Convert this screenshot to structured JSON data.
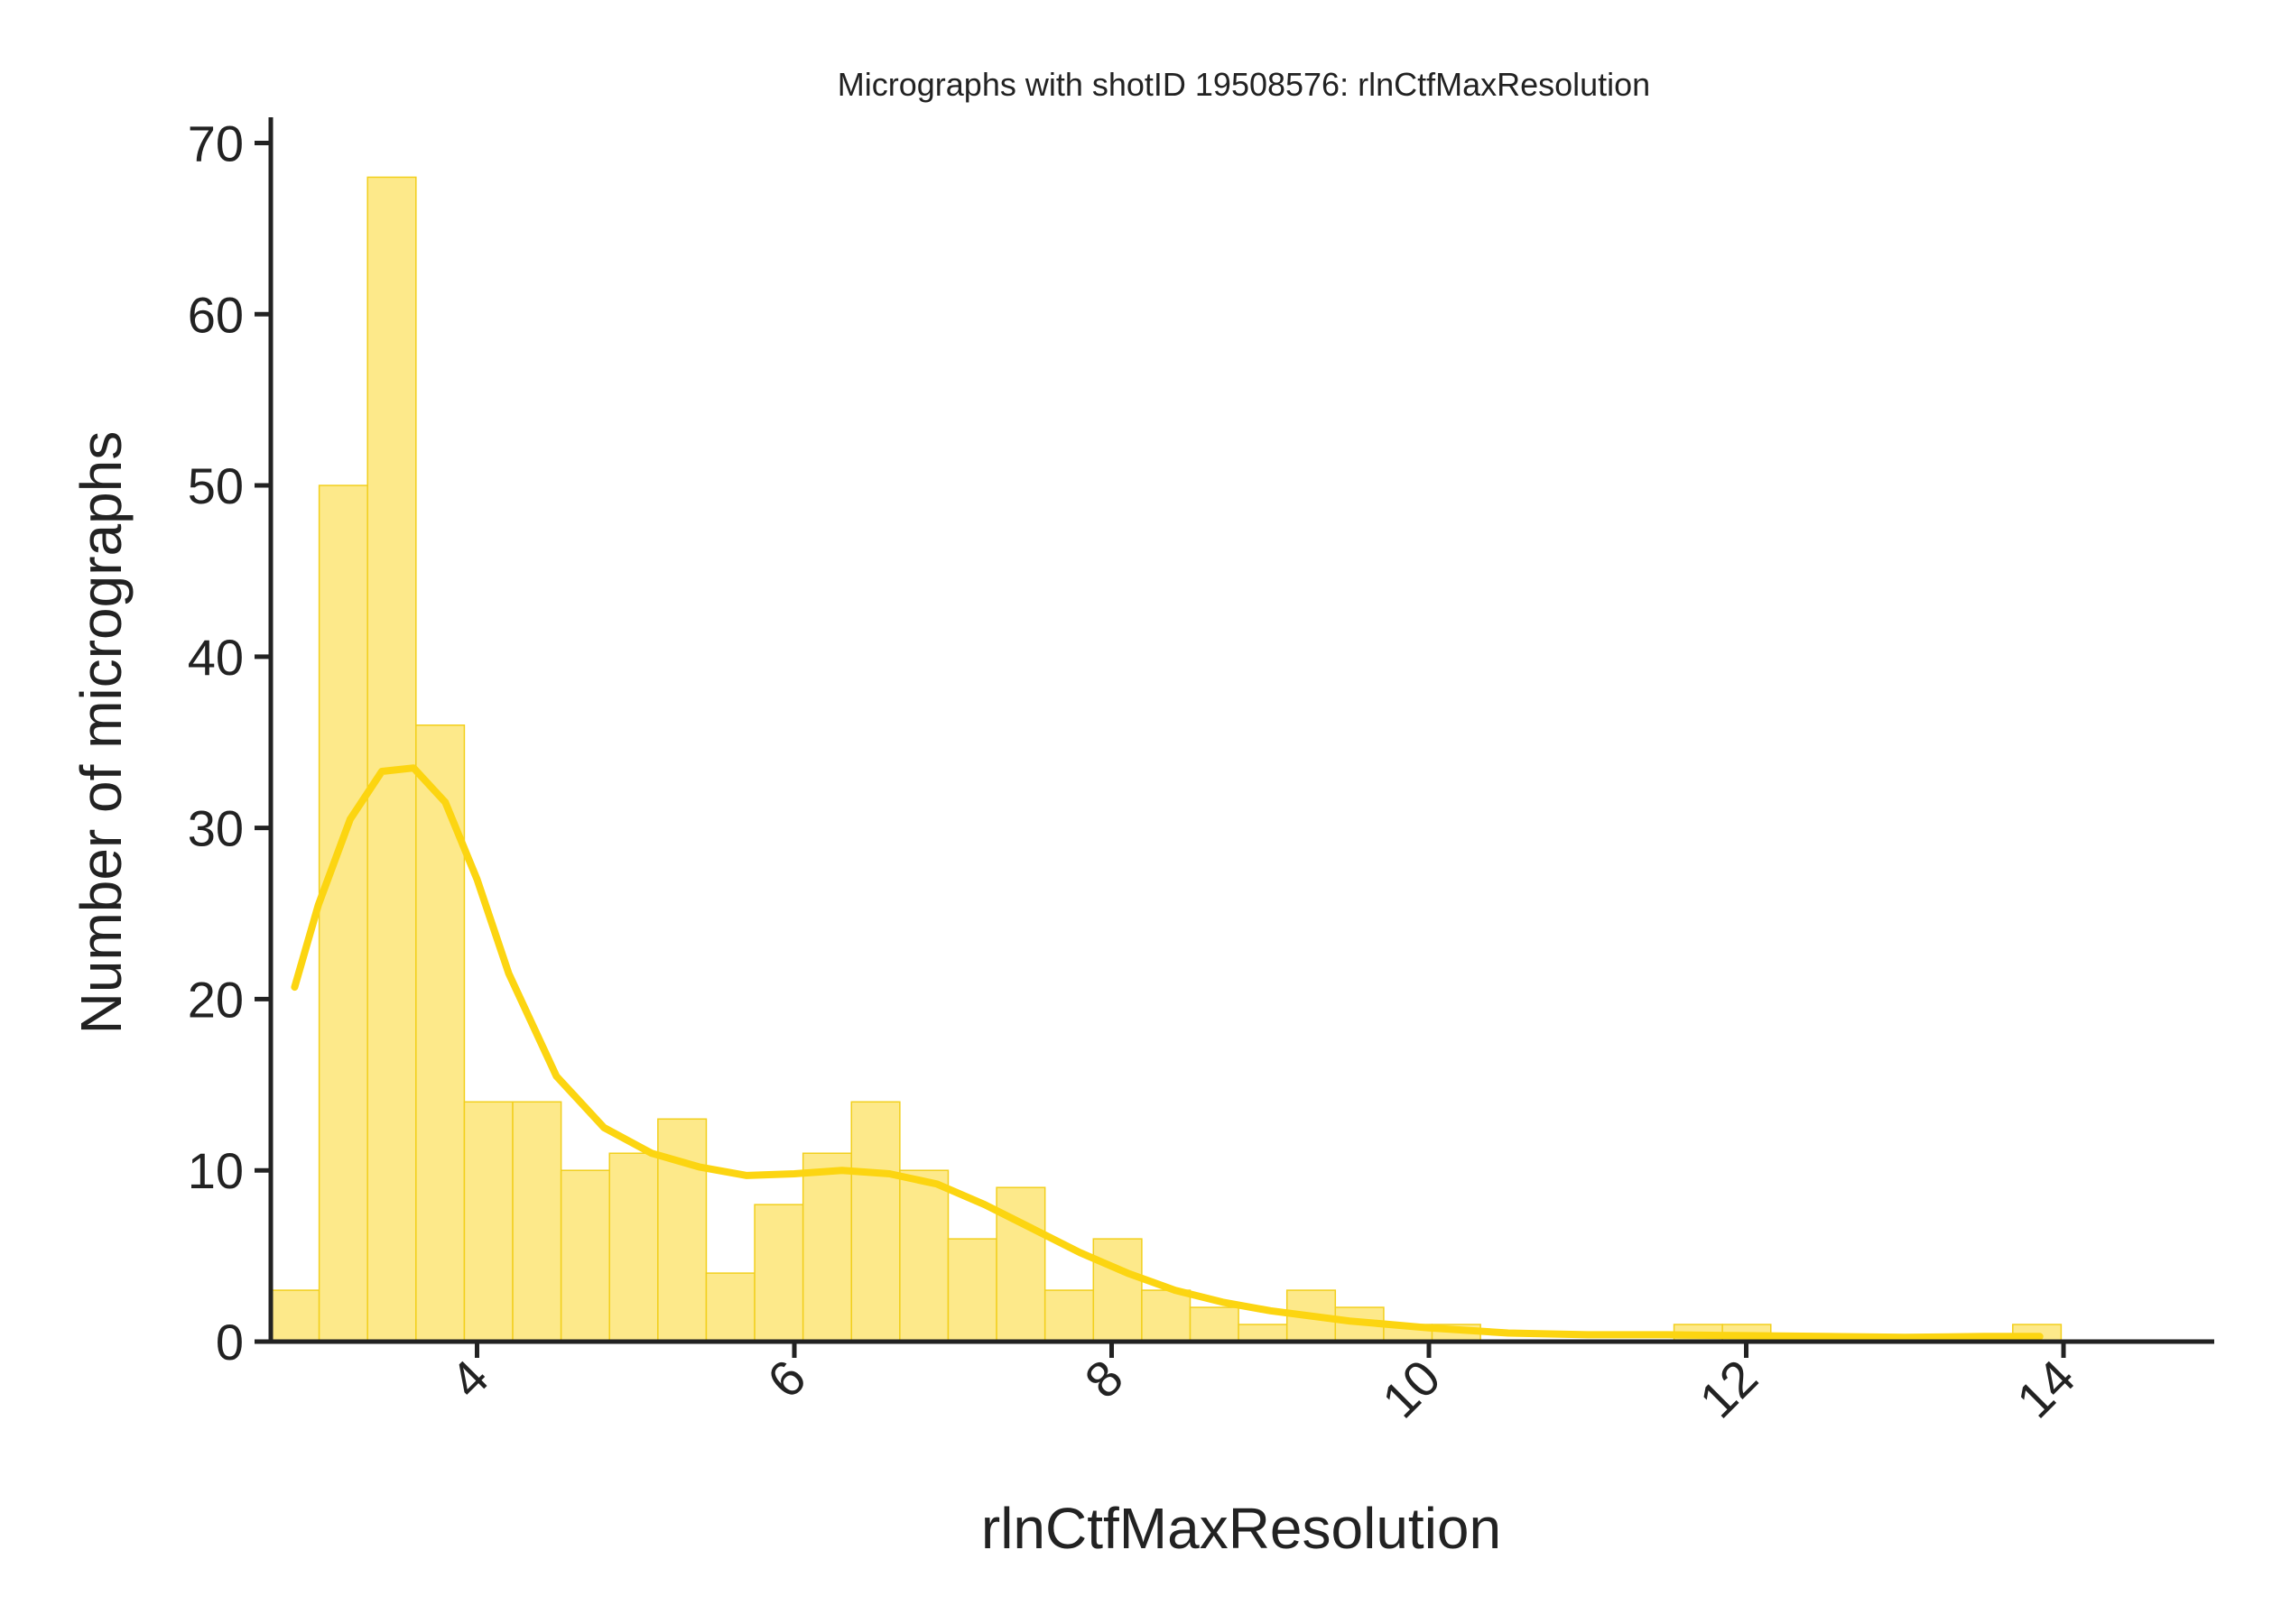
{
  "chart_data": {
    "type": "bar",
    "subtype": "histogram_with_kde",
    "title": "Micrographs with shotID 19508576: rlnCtfMaxResolution",
    "xlabel": "rlnCtfMaxResolution",
    "ylabel": "Number of micrographs",
    "xlim": [
      2.7,
      14.95
    ],
    "ylim": [
      0,
      71.5
    ],
    "x_ticks": [
      4,
      6,
      8,
      10,
      12,
      14
    ],
    "x_tick_labels": [
      "4",
      "6",
      "8",
      "10",
      "12",
      "14"
    ],
    "y_ticks": [
      0,
      10,
      20,
      30,
      40,
      50,
      60,
      70
    ],
    "y_tick_labels": [
      "0",
      "10",
      "20",
      "30",
      "40",
      "50",
      "60",
      "70"
    ],
    "grid": false,
    "bin_edges": [
      2.7,
      3.005,
      3.31,
      3.615,
      3.92,
      4.225,
      4.53,
      4.835,
      5.14,
      5.445,
      5.75,
      6.055,
      6.36,
      6.665,
      6.97,
      7.275,
      7.58,
      7.885,
      8.19,
      8.495,
      8.8,
      9.105,
      9.41,
      9.715,
      10.02,
      10.325,
      10.63,
      10.935,
      11.24,
      11.545,
      11.85,
      12.155,
      12.46,
      12.765,
      13.07,
      13.375,
      13.68,
      13.985
    ],
    "counts": [
      3,
      50,
      68,
      36,
      14,
      14,
      10,
      11,
      13,
      4,
      8,
      11,
      14,
      10,
      6,
      9,
      3,
      6,
      3,
      2,
      1,
      3,
      2,
      1,
      1,
      0,
      0,
      0,
      0,
      1,
      1,
      0,
      0,
      0,
      0,
      0,
      1
    ],
    "kde": {
      "x": [
        2.85,
        3.0,
        3.2,
        3.4,
        3.6,
        3.8,
        4.0,
        4.2,
        4.5,
        4.8,
        5.1,
        5.4,
        5.7,
        6.0,
        6.3,
        6.6,
        6.9,
        7.2,
        7.5,
        7.8,
        8.1,
        8.4,
        8.7,
        9.0,
        9.5,
        10.0,
        10.5,
        11.0,
        11.5,
        12.0,
        12.5,
        13.0,
        13.5,
        13.85
      ],
      "y": [
        20.7,
        25.5,
        30.5,
        33.3,
        33.5,
        31.5,
        27.0,
        21.5,
        15.5,
        12.5,
        11.0,
        10.2,
        9.7,
        9.8,
        10.0,
        9.8,
        9.2,
        8.0,
        6.6,
        5.2,
        4.0,
        3.0,
        2.3,
        1.8,
        1.2,
        0.8,
        0.5,
        0.4,
        0.4,
        0.35,
        0.3,
        0.25,
        0.3,
        0.3
      ]
    },
    "colors": {
      "bar_fill": "#fde98a",
      "bar_edge": "#f2cf1c",
      "kde_line": "#fcd511",
      "axis": "#222222"
    }
  }
}
